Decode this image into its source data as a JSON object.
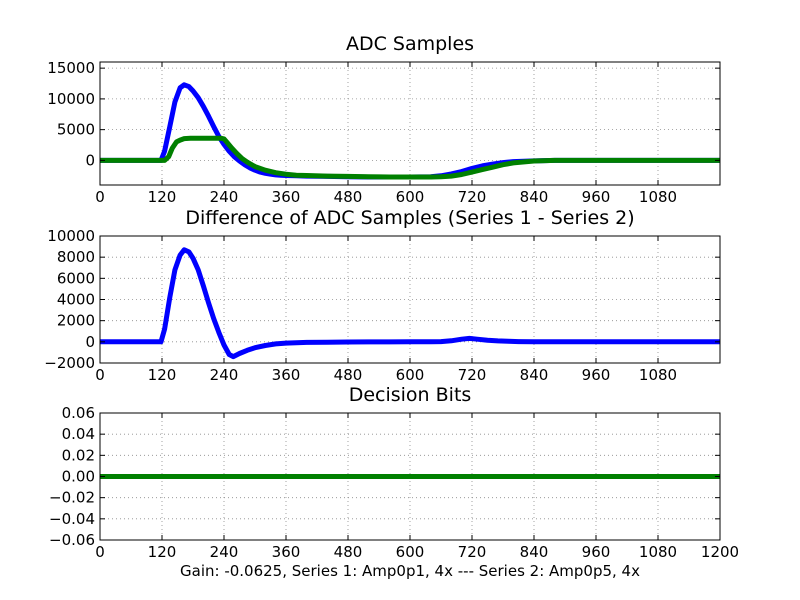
{
  "figure": {
    "caption": "Gain: -0.0625, Series 1: Amp0p1, 4x --- Series 2: Amp0p5, 4x"
  },
  "colors": {
    "series1": "#0000ff",
    "series2": "#008000",
    "grid": "#8c8c8c",
    "axis": "#000000"
  },
  "chart_data": [
    {
      "type": "line",
      "title": "ADC Samples",
      "xlabel": "",
      "ylabel": "",
      "xlim": [
        0,
        1200
      ],
      "ylim": [
        -4000,
        16000
      ],
      "grid": true,
      "x_ticks": [
        0,
        120,
        240,
        360,
        480,
        600,
        720,
        840,
        960,
        1080
      ],
      "x_tick_labels": [
        "0",
        "120",
        "240",
        "360",
        "480",
        "600",
        "720",
        "840",
        "960",
        "1080"
      ],
      "y_ticks": [
        0,
        5000,
        10000,
        15000
      ],
      "y_tick_labels": [
        "0",
        "5000",
        "10000",
        "15000"
      ],
      "series": [
        {
          "name": "Series 1",
          "color": "#0000ff",
          "x": [
            0,
            118,
            125,
            135,
            145,
            155,
            163,
            172,
            180,
            190,
            200,
            210,
            220,
            230,
            240,
            250,
            260,
            270,
            280,
            290,
            300,
            310,
            320,
            330,
            340,
            350,
            360,
            380,
            400,
            440,
            480,
            520,
            560,
            600,
            640,
            660,
            680,
            700,
            720,
            740,
            760,
            780,
            800,
            840,
            880,
            960,
            1200
          ],
          "values": [
            0,
            0,
            1500,
            5500,
            9500,
            11800,
            12300,
            12000,
            11300,
            10200,
            8800,
            7200,
            5500,
            3900,
            2600,
            1500,
            600,
            -100,
            -700,
            -1200,
            -1600,
            -1900,
            -2100,
            -2250,
            -2350,
            -2400,
            -2450,
            -2500,
            -2550,
            -2600,
            -2650,
            -2700,
            -2700,
            -2700,
            -2650,
            -2500,
            -2200,
            -1800,
            -1300,
            -900,
            -600,
            -350,
            -200,
            -80,
            0,
            0,
            0
          ]
        },
        {
          "name": "Series 2",
          "color": "#008000",
          "x": [
            0,
            125,
            133,
            140,
            148,
            155,
            163,
            175,
            200,
            220,
            235,
            240,
            245,
            255,
            265,
            275,
            285,
            300,
            320,
            340,
            360,
            380,
            400,
            440,
            480,
            520,
            560,
            600,
            640,
            660,
            680,
            700,
            720,
            740,
            760,
            780,
            800,
            840,
            880,
            960,
            1200
          ],
          "values": [
            0,
            0,
            600,
            2000,
            3000,
            3300,
            3550,
            3600,
            3600,
            3600,
            3600,
            3500,
            3000,
            2000,
            1100,
            300,
            -300,
            -1000,
            -1600,
            -2000,
            -2250,
            -2400,
            -2450,
            -2550,
            -2600,
            -2650,
            -2700,
            -2700,
            -2700,
            -2650,
            -2550,
            -2300,
            -1900,
            -1500,
            -1100,
            -700,
            -400,
            -100,
            0,
            0,
            0
          ]
        }
      ]
    },
    {
      "type": "line",
      "title": "Difference of ADC Samples (Series 1 - Series 2)",
      "xlabel": "",
      "ylabel": "",
      "xlim": [
        0,
        1200
      ],
      "ylim": [
        -2000,
        10000
      ],
      "grid": true,
      "x_ticks": [
        0,
        120,
        240,
        360,
        480,
        600,
        720,
        840,
        960,
        1080
      ],
      "x_tick_labels": [
        "0",
        "120",
        "240",
        "360",
        "480",
        "600",
        "720",
        "840",
        "960",
        "1080"
      ],
      "y_ticks": [
        -2000,
        0,
        2000,
        4000,
        6000,
        8000,
        10000
      ],
      "y_tick_labels": [
        "−2000",
        "0",
        "2000",
        "4000",
        "6000",
        "8000",
        "10000"
      ],
      "series": [
        {
          "name": "Series 1 - Series 2",
          "color": "#0000ff",
          "x": [
            0,
            118,
            125,
            135,
            145,
            155,
            163,
            172,
            180,
            190,
            200,
            210,
            220,
            230,
            240,
            250,
            258,
            270,
            285,
            300,
            320,
            340,
            360,
            380,
            400,
            440,
            480,
            520,
            560,
            600,
            640,
            660,
            680,
            700,
            715,
            730,
            750,
            770,
            790,
            810,
            840,
            900,
            1200
          ],
          "values": [
            0,
            0,
            1200,
            4200,
            6800,
            8200,
            8700,
            8500,
            7900,
            6800,
            5300,
            3700,
            2200,
            900,
            -300,
            -1200,
            -1400,
            -1100,
            -800,
            -550,
            -350,
            -200,
            -120,
            -80,
            -50,
            -30,
            -20,
            -10,
            -10,
            0,
            0,
            20,
            100,
            250,
            320,
            250,
            150,
            90,
            50,
            20,
            0,
            0,
            0
          ]
        }
      ]
    },
    {
      "type": "line",
      "title": "Decision Bits",
      "xlabel": "Gain: -0.0625, Series 1: Amp0p1, 4x --- Series 2: Amp0p5, 4x",
      "ylabel": "",
      "xlim": [
        0,
        1200
      ],
      "ylim": [
        -0.06,
        0.06
      ],
      "grid": true,
      "x_ticks": [
        0,
        120,
        240,
        360,
        480,
        600,
        720,
        840,
        960,
        1080,
        1200
      ],
      "x_tick_labels": [
        "0",
        "120",
        "240",
        "360",
        "480",
        "600",
        "720",
        "840",
        "960",
        "1080",
        "1200"
      ],
      "y_ticks": [
        -0.06,
        -0.04,
        -0.02,
        0.0,
        0.02,
        0.04,
        0.06
      ],
      "y_tick_labels": [
        "−0.06",
        "−0.04",
        "−0.02",
        "0.00",
        "0.02",
        "0.04",
        "0.06"
      ],
      "series": [
        {
          "name": "Decision Bits",
          "color": "#008000",
          "x": [
            0,
            1200
          ],
          "values": [
            0,
            0
          ]
        }
      ]
    }
  ]
}
